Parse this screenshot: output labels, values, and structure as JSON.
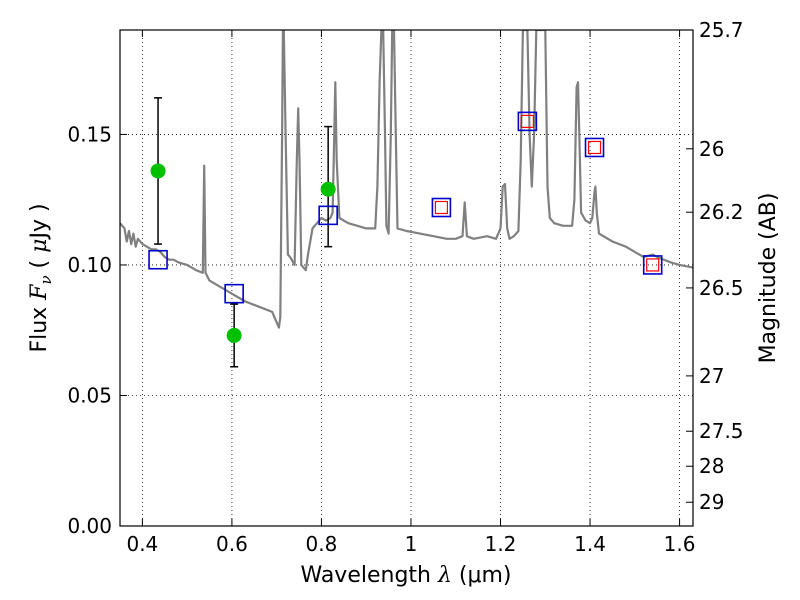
{
  "chart_data": {
    "type": "scatter",
    "xlabel": "Wavelength  λ (μm)",
    "xlabel_parts": {
      "prefix": "Wavelength  ",
      "symbol": "λ",
      "suffix": " (μm)"
    },
    "ylabel": "Flux  Fν  ( μJy )",
    "ylabel_parts": {
      "prefix": "Flux  ",
      "symbol": "F",
      "sub": "ν",
      "middle": "  ( ",
      "mu": "μ",
      "suffix": "Jy )"
    },
    "y2label": "Magnitude (AB)",
    "xlim": [
      0.35,
      1.63
    ],
    "ylim": [
      0.0,
      0.19
    ],
    "grid": true,
    "xticks": [
      {
        "value": 0.4,
        "label": "0.4"
      },
      {
        "value": 0.6,
        "label": "0.6"
      },
      {
        "value": 0.8,
        "label": "0.8"
      },
      {
        "value": 1.0,
        "label": "1"
      },
      {
        "value": 1.2,
        "label": "1.2"
      },
      {
        "value": 1.4,
        "label": "1.4"
      },
      {
        "value": 1.6,
        "label": "1.6"
      }
    ],
    "yticks": [
      {
        "value": 0.0,
        "label": "0.00"
      },
      {
        "value": 0.05,
        "label": "0.05"
      },
      {
        "value": 0.1,
        "label": "0.10"
      },
      {
        "value": 0.15,
        "label": "0.15"
      }
    ],
    "y2ticks": [
      {
        "label": "25.7",
        "flux": 0.19
      },
      {
        "label": "26",
        "flux": 0.1445
      },
      {
        "label": "26.2",
        "flux": 0.1202
      },
      {
        "label": "26.5",
        "flux": 0.0912
      },
      {
        "label": "27",
        "flux": 0.0575
      },
      {
        "label": "27.5",
        "flux": 0.0363
      },
      {
        "label": "28",
        "flux": 0.0229
      },
      {
        "label": "29",
        "flux": 0.0091
      }
    ],
    "model_spectrum": {
      "color": "#808080",
      "points": [
        [
          0.35,
          0.116
        ],
        [
          0.36,
          0.114
        ],
        [
          0.365,
          0.109
        ],
        [
          0.37,
          0.113
        ],
        [
          0.375,
          0.108
        ],
        [
          0.38,
          0.112
        ],
        [
          0.385,
          0.107
        ],
        [
          0.39,
          0.11
        ],
        [
          0.4,
          0.108
        ],
        [
          0.41,
          0.107
        ],
        [
          0.42,
          0.106
        ],
        [
          0.43,
          0.106
        ],
        [
          0.44,
          0.105
        ],
        [
          0.45,
          0.103
        ],
        [
          0.46,
          0.102
        ],
        [
          0.47,
          0.102
        ],
        [
          0.48,
          0.101
        ],
        [
          0.5,
          0.1
        ],
        [
          0.52,
          0.098
        ],
        [
          0.535,
          0.097
        ],
        [
          0.538,
          0.138
        ],
        [
          0.541,
          0.097
        ],
        [
          0.55,
          0.094
        ],
        [
          0.57,
          0.092
        ],
        [
          0.6,
          0.089
        ],
        [
          0.63,
          0.086
        ],
        [
          0.66,
          0.084
        ],
        [
          0.69,
          0.082
        ],
        [
          0.7,
          0.078
        ],
        [
          0.705,
          0.076
        ],
        [
          0.708,
          0.08
        ],
        [
          0.712,
          0.15
        ],
        [
          0.714,
          0.19
        ],
        [
          0.716,
          0.19
        ],
        [
          0.72,
          0.15
        ],
        [
          0.725,
          0.104
        ],
        [
          0.73,
          0.103
        ],
        [
          0.74,
          0.1
        ],
        [
          0.745,
          0.14
        ],
        [
          0.748,
          0.16
        ],
        [
          0.751,
          0.14
        ],
        [
          0.755,
          0.1
        ],
        [
          0.765,
          0.098
        ],
        [
          0.77,
          0.104
        ],
        [
          0.78,
          0.114
        ],
        [
          0.79,
          0.116
        ],
        [
          0.8,
          0.118
        ],
        [
          0.81,
          0.117
        ],
        [
          0.82,
          0.118
        ],
        [
          0.825,
          0.12
        ],
        [
          0.828,
          0.145
        ],
        [
          0.831,
          0.17
        ],
        [
          0.834,
          0.14
        ],
        [
          0.84,
          0.118
        ],
        [
          0.86,
          0.116
        ],
        [
          0.88,
          0.115
        ],
        [
          0.9,
          0.114
        ],
        [
          0.92,
          0.114
        ],
        [
          0.925,
          0.13
        ],
        [
          0.93,
          0.17
        ],
        [
          0.934,
          0.19
        ],
        [
          0.938,
          0.19
        ],
        [
          0.942,
          0.15
        ],
        [
          0.945,
          0.115
        ],
        [
          0.95,
          0.112
        ],
        [
          0.955,
          0.15
        ],
        [
          0.958,
          0.19
        ],
        [
          0.962,
          0.19
        ],
        [
          0.966,
          0.15
        ],
        [
          0.97,
          0.114
        ],
        [
          0.99,
          0.113
        ],
        [
          1.02,
          0.112
        ],
        [
          1.05,
          0.111
        ],
        [
          1.08,
          0.11
        ],
        [
          1.1,
          0.11
        ],
        [
          1.115,
          0.111
        ],
        [
          1.12,
          0.124
        ],
        [
          1.125,
          0.111
        ],
        [
          1.14,
          0.11
        ],
        [
          1.17,
          0.111
        ],
        [
          1.19,
          0.11
        ],
        [
          1.2,
          0.114
        ],
        [
          1.205,
          0.13
        ],
        [
          1.21,
          0.131
        ],
        [
          1.215,
          0.114
        ],
        [
          1.22,
          0.11
        ],
        [
          1.23,
          0.111
        ],
        [
          1.24,
          0.113
        ],
        [
          1.245,
          0.14
        ],
        [
          1.25,
          0.19
        ],
        [
          1.26,
          0.19
        ],
        [
          1.265,
          0.15
        ],
        [
          1.27,
          0.13
        ],
        [
          1.275,
          0.15
        ],
        [
          1.28,
          0.19
        ],
        [
          1.3,
          0.19
        ],
        [
          1.305,
          0.13
        ],
        [
          1.31,
          0.118
        ],
        [
          1.32,
          0.116
        ],
        [
          1.34,
          0.115
        ],
        [
          1.36,
          0.115
        ],
        [
          1.365,
          0.125
        ],
        [
          1.37,
          0.168
        ],
        [
          1.373,
          0.17
        ],
        [
          1.376,
          0.15
        ],
        [
          1.38,
          0.12
        ],
        [
          1.39,
          0.117
        ],
        [
          1.4,
          0.116
        ],
        [
          1.405,
          0.118
        ],
        [
          1.41,
          0.128
        ],
        [
          1.412,
          0.13
        ],
        [
          1.415,
          0.12
        ],
        [
          1.42,
          0.112
        ],
        [
          1.45,
          0.109
        ],
        [
          1.48,
          0.107
        ],
        [
          1.5,
          0.105
        ],
        [
          1.52,
          0.103
        ],
        [
          1.54,
          0.104
        ],
        [
          1.55,
          0.103
        ],
        [
          1.58,
          0.101
        ],
        [
          1.6,
          0.1
        ],
        [
          1.63,
          0.099
        ]
      ]
    },
    "series": [
      {
        "marker": "circle",
        "color": "#00c000",
        "points": [
          {
            "x": 0.435,
            "y": 0.136,
            "yerr": [
              0.108,
              0.164
            ]
          },
          {
            "x": 0.605,
            "y": 0.073,
            "yerr": [
              0.061,
              0.085
            ]
          },
          {
            "x": 0.815,
            "y": 0.129,
            "yerr": [
              0.107,
              0.153
            ]
          }
        ]
      },
      {
        "marker": "square-open",
        "color": "#0000cc",
        "points": [
          {
            "x": 0.435,
            "y": 0.102
          },
          {
            "x": 0.605,
            "y": 0.089
          },
          {
            "x": 0.815,
            "y": 0.119
          },
          {
            "x": 1.068,
            "y": 0.122
          },
          {
            "x": 1.26,
            "y": 0.155
          },
          {
            "x": 1.41,
            "y": 0.145
          },
          {
            "x": 1.54,
            "y": 0.1
          }
        ]
      },
      {
        "marker": "square-open-small",
        "color": "#ff0000",
        "points": [
          {
            "x": 1.068,
            "y": 0.122
          },
          {
            "x": 1.26,
            "y": 0.155
          },
          {
            "x": 1.41,
            "y": 0.145
          },
          {
            "x": 1.54,
            "y": 0.1
          }
        ]
      }
    ]
  }
}
